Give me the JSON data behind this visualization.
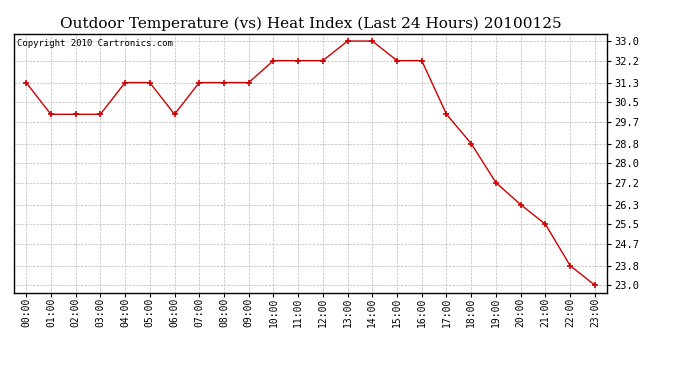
{
  "title": "Outdoor Temperature (vs) Heat Index (Last 24 Hours) 20100125",
  "copyright": "Copyright 2010 Cartronics.com",
  "x_labels": [
    "00:00",
    "01:00",
    "02:00",
    "03:00",
    "04:00",
    "05:00",
    "06:00",
    "07:00",
    "08:00",
    "09:00",
    "10:00",
    "11:00",
    "12:00",
    "13:00",
    "14:00",
    "15:00",
    "16:00",
    "17:00",
    "18:00",
    "19:00",
    "20:00",
    "21:00",
    "22:00",
    "23:00"
  ],
  "y_values": [
    31.3,
    30.0,
    30.0,
    30.0,
    31.3,
    31.3,
    30.0,
    31.3,
    31.3,
    31.3,
    32.2,
    32.2,
    32.2,
    33.0,
    33.0,
    32.2,
    32.2,
    30.0,
    28.8,
    27.2,
    26.3,
    25.5,
    23.8,
    23.0
  ],
  "y_ticks": [
    23.0,
    23.8,
    24.7,
    25.5,
    26.3,
    27.2,
    28.0,
    28.8,
    29.7,
    30.5,
    31.3,
    32.2,
    33.0
  ],
  "y_min": 22.7,
  "y_max": 33.3,
  "line_color": "#cc0000",
  "marker": "+",
  "bg_color": "#ffffff",
  "plot_bg_color": "#ffffff",
  "grid_color": "#bbbbbb",
  "title_fontsize": 11,
  "copyright_fontsize": 6.5,
  "tick_fontsize": 7,
  "ytick_fontsize": 7.5
}
